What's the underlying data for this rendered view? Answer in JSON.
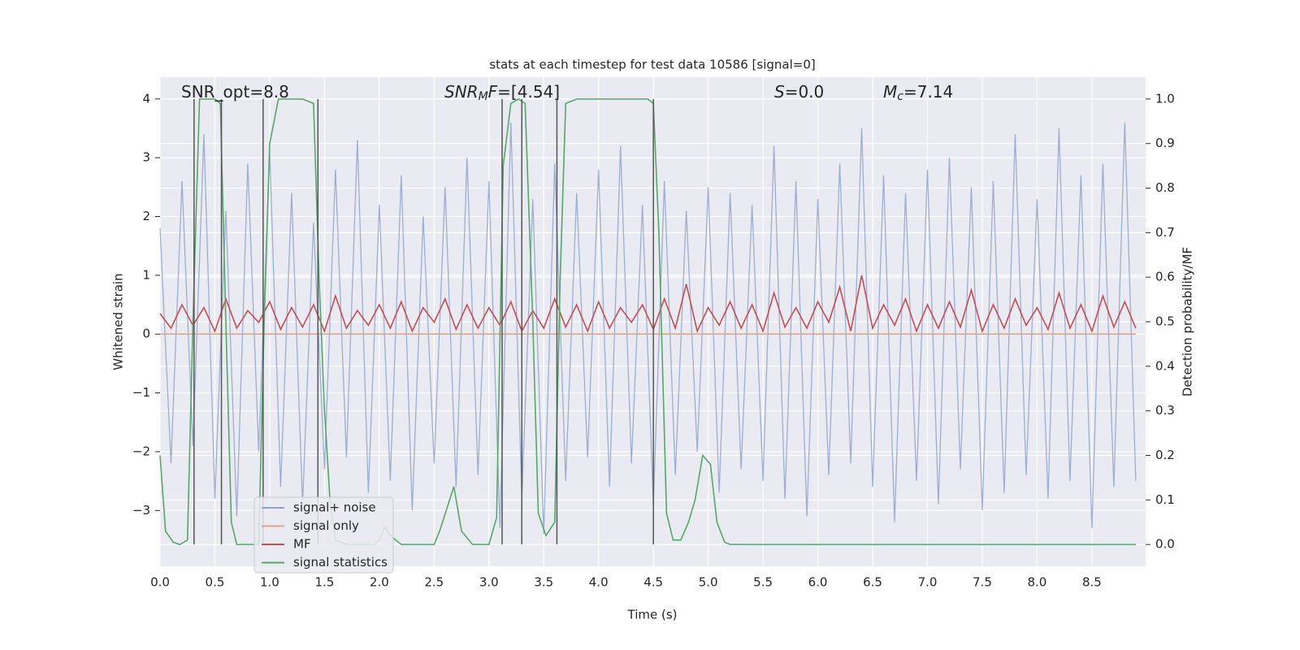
{
  "chart_data": {
    "type": "line",
    "title": "stats at each timestep for test data 10586 [signal=0]",
    "xlabel": "Time (s)",
    "ylabel": "Whitened strain",
    "y2label": "Detection probability/MF",
    "grid": true,
    "background": "#eaeaf2",
    "legend": "lower left",
    "xlim": [
      0,
      8.99
    ],
    "ylim": [
      -3.95,
      4.37
    ],
    "y2lim": [
      -0.049,
      1.049
    ],
    "xticks": [
      {
        "value": 0,
        "label": "0.0"
      },
      0.5,
      {
        "value": 1,
        "label": "1.0"
      },
      1.5,
      {
        "value": 2,
        "label": "2.0"
      },
      2.5,
      {
        "value": 3,
        "label": "3.0"
      },
      3.5,
      {
        "value": 4,
        "label": "4.0"
      },
      4.5,
      {
        "value": 5,
        "label": "5.0"
      },
      5.5,
      {
        "value": 6,
        "label": "6.0"
      },
      6.5,
      {
        "value": 7,
        "label": "7.0"
      },
      7.5,
      {
        "value": 8,
        "label": "8.0"
      },
      8.5
    ],
    "yticks": [
      {
        "value": -3,
        "label": "−3"
      },
      {
        "value": -2,
        "label": "−2"
      },
      {
        "value": -1,
        "label": "−1"
      },
      0,
      1,
      2,
      3,
      4
    ],
    "y2ticks": [
      {
        "value": 0,
        "label": "0.0"
      },
      0.1,
      0.2,
      0.3,
      0.4,
      0.5,
      0.6,
      0.7,
      0.8,
      0.9,
      {
        "value": 1,
        "label": "1.0"
      }
    ],
    "annotations": [
      {
        "segments": [
          {
            "text": "SNR_opt=8.8"
          }
        ]
      },
      {
        "segments": [
          {
            "text": "SNR",
            "italic": true
          },
          {
            "text": "M",
            "italic": true,
            "sub": true
          },
          {
            "text": "F",
            "italic": true
          },
          {
            "text": "=[4.54]"
          }
        ]
      },
      {
        "segments": [
          {
            "text": "S",
            "italic": true
          },
          {
            "text": "=0.0"
          }
        ]
      },
      {
        "segments": [
          {
            "text": "M",
            "italic": true
          },
          {
            "text": "c",
            "italic": true,
            "sub": true
          },
          {
            "text": "=7.14"
          }
        ]
      }
    ],
    "vlines": [
      0.31,
      0.56,
      0.94,
      1.44,
      3.12,
      3.3,
      3.62,
      4.5
    ],
    "vline_range": [
      0,
      1
    ],
    "vline_color": "#555555",
    "x": [
      0,
      0.1,
      0.2,
      0.3,
      0.4,
      0.5,
      0.6,
      0.7,
      0.8,
      0.9,
      1,
      1.1,
      1.2,
      1.3,
      1.4,
      1.5,
      1.6,
      1.7,
      1.8,
      1.9,
      2,
      2.1,
      2.2,
      2.3,
      2.4,
      2.5,
      2.6,
      2.7,
      2.8,
      2.9,
      3,
      3.1,
      3.2,
      3.3,
      3.4,
      3.5,
      3.6,
      3.7,
      3.8,
      3.9,
      4,
      4.1,
      4.2,
      4.3,
      4.4,
      4.5,
      4.6,
      4.7,
      4.8,
      4.9,
      5,
      5.1,
      5.2,
      5.3,
      5.4,
      5.5,
      5.6,
      5.7,
      5.8,
      5.9,
      6,
      6.1,
      6.2,
      6.3,
      6.4,
      6.5,
      6.6,
      6.7,
      6.8,
      6.9,
      7,
      7.1,
      7.2,
      7.3,
      7.4,
      7.5,
      7.6,
      7.7,
      7.8,
      7.9,
      8,
      8.1,
      8.2,
      8.3,
      8.4,
      8.5,
      8.6,
      8.7,
      8.8,
      8.9
    ],
    "series": [
      {
        "name": "signal+ noise",
        "color": "#8fa3cd",
        "values": [
          1.8,
          -2.2,
          2.6,
          -1.9,
          3.4,
          -2.8,
          2.1,
          -3.1,
          2.9,
          -2.0,
          3.1,
          -2.6,
          2.4,
          -2.9,
          1.9,
          -2.3,
          2.8,
          -2.1,
          3.3,
          -2.7,
          2.2,
          -2.5,
          2.7,
          -3.0,
          2.0,
          -2.2,
          2.5,
          -2.6,
          3.0,
          -2.4,
          2.6,
          -3.3,
          3.6,
          -2.8,
          2.3,
          -3.4,
          2.9,
          -2.5,
          2.4,
          -2.1,
          2.8,
          -2.6,
          3.2,
          -2.2,
          2.2,
          -2.9,
          2.6,
          -2.4,
          2.1,
          -2.0,
          2.5,
          -2.7,
          2.4,
          -2.3,
          2.2,
          -2.5,
          3.2,
          -2.8,
          2.6,
          -3.1,
          2.3,
          -2.4,
          2.9,
          -2.2,
          3.5,
          -2.6,
          2.7,
          -3.2,
          2.4,
          -2.5,
          2.8,
          -2.9,
          3.0,
          -2.3,
          2.5,
          -3.0,
          2.6,
          -2.7,
          3.4,
          -2.4,
          2.3,
          -2.8,
          3.5,
          -2.5,
          2.7,
          -3.3,
          2.9,
          -2.6,
          3.6,
          -2.5
        ]
      },
      {
        "name": "signal only",
        "color": "#e8a383",
        "x": [
          0,
          8.9
        ],
        "values": [
          0,
          0
        ]
      },
      {
        "name": "MF",
        "color": "#c44e52",
        "values": [
          0.35,
          0.1,
          0.5,
          0.15,
          0.45,
          0.05,
          0.6,
          0.1,
          0.4,
          0.2,
          0.55,
          0.08,
          0.45,
          0.12,
          0.5,
          0.05,
          0.65,
          0.1,
          0.4,
          0.15,
          0.5,
          0.1,
          0.55,
          0.05,
          0.45,
          0.2,
          0.6,
          0.08,
          0.5,
          0.1,
          0.45,
          0.15,
          0.55,
          0.05,
          0.4,
          0.1,
          0.6,
          0.12,
          0.5,
          0.05,
          0.55,
          0.1,
          0.45,
          0.2,
          0.5,
          0.08,
          0.6,
          0.1,
          0.85,
          0.05,
          0.45,
          0.15,
          0.55,
          0.1,
          0.5,
          0.05,
          0.7,
          0.12,
          0.45,
          0.1,
          0.55,
          0.2,
          0.8,
          0.05,
          1.0,
          0.1,
          0.5,
          0.15,
          0.6,
          0.05,
          0.5,
          0.1,
          0.55,
          0.12,
          0.75,
          0.05,
          0.5,
          0.1,
          0.6,
          0.15,
          0.45,
          0.08,
          0.7,
          0.1,
          0.5,
          0.05,
          0.65,
          0.12,
          0.55,
          0.1
        ]
      },
      {
        "name": "signal statistics",
        "color": "#55a868",
        "axis": "y2",
        "x": [
          0,
          0.05,
          0.12,
          0.18,
          0.25,
          0.3,
          0.36,
          0.5,
          0.55,
          0.6,
          0.65,
          0.7,
          0.9,
          0.95,
          1.0,
          1.08,
          1.3,
          1.4,
          1.45,
          1.5,
          1.55,
          1.6,
          1.7,
          1.95,
          2.0,
          2.05,
          2.1,
          2.2,
          2.5,
          2.55,
          2.68,
          2.75,
          2.85,
          3.0,
          3.07,
          3.13,
          3.2,
          3.27,
          3.33,
          3.4,
          3.45,
          3.52,
          3.6,
          3.65,
          3.7,
          3.8,
          4.45,
          4.5,
          4.55,
          4.62,
          4.68,
          4.75,
          4.82,
          4.88,
          4.95,
          5.02,
          5.08,
          5.15,
          5.2,
          8.9
        ],
        "values": [
          0.2,
          0.03,
          0.005,
          0,
          0.01,
          0.5,
          1,
          1,
          0.99,
          0.5,
          0.05,
          0,
          0,
          0.5,
          0.9,
          1,
          1,
          0.99,
          0.6,
          0.3,
          0.1,
          0.01,
          0,
          0,
          0.01,
          0.04,
          0.02,
          0,
          0,
          0.03,
          0.13,
          0.03,
          0,
          0,
          0.06,
          0.85,
          0.99,
          1,
          0.99,
          0.5,
          0.07,
          0.02,
          0.05,
          0.6,
          0.99,
          1,
          1,
          0.99,
          0.7,
          0.07,
          0.01,
          0.01,
          0.05,
          0.1,
          0.2,
          0.18,
          0.05,
          0.005,
          0,
          0
        ]
      }
    ]
  }
}
